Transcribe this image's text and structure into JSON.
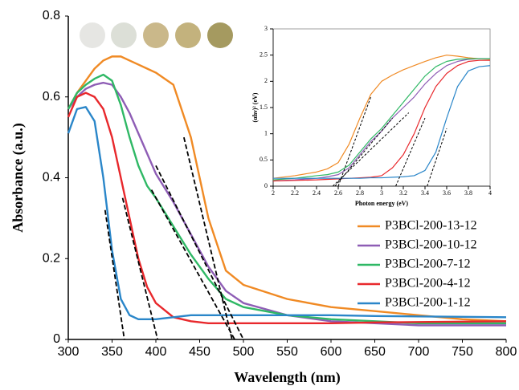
{
  "chart_data": [
    {
      "type": "line",
      "x_label": "Wavelength (nm)",
      "y_label": "Absorbance (a.u.)",
      "x": [
        300,
        310,
        320,
        330,
        340,
        350,
        360,
        370,
        380,
        390,
        400,
        420,
        440,
        460,
        480,
        500,
        550,
        600,
        650,
        700,
        750,
        800
      ],
      "series": [
        {
          "name": "P3BCl-200-13-12",
          "color": "#f08a24",
          "values": [
            0.57,
            0.61,
            0.64,
            0.67,
            0.69,
            0.7,
            0.7,
            0.69,
            0.68,
            0.67,
            0.66,
            0.63,
            0.5,
            0.3,
            0.17,
            0.135,
            0.1,
            0.08,
            0.07,
            0.06,
            0.05,
            0.045
          ]
        },
        {
          "name": "P3BCl-200-10-12",
          "color": "#8e5db5",
          "values": [
            0.57,
            0.6,
            0.62,
            0.63,
            0.635,
            0.63,
            0.6,
            0.56,
            0.51,
            0.46,
            0.41,
            0.34,
            0.26,
            0.18,
            0.12,
            0.09,
            0.06,
            0.045,
            0.04,
            0.035,
            0.035,
            0.035
          ]
        },
        {
          "name": "P3BCl-200-7-12",
          "color": "#2fb865",
          "values": [
            0.57,
            0.61,
            0.63,
            0.645,
            0.655,
            0.64,
            0.58,
            0.5,
            0.43,
            0.38,
            0.35,
            0.28,
            0.21,
            0.15,
            0.1,
            0.08,
            0.06,
            0.05,
            0.045,
            0.04,
            0.04,
            0.04
          ]
        },
        {
          "name": "P3BCl-200-4-12",
          "color": "#e8282c",
          "values": [
            0.55,
            0.6,
            0.61,
            0.6,
            0.57,
            0.5,
            0.4,
            0.3,
            0.2,
            0.13,
            0.09,
            0.055,
            0.045,
            0.04,
            0.04,
            0.04,
            0.04,
            0.04,
            0.042,
            0.043,
            0.044,
            0.045
          ]
        },
        {
          "name": "P3BCl-200-1-12",
          "color": "#2a86c9",
          "values": [
            0.51,
            0.57,
            0.575,
            0.54,
            0.4,
            0.22,
            0.1,
            0.06,
            0.05,
            0.05,
            0.05,
            0.055,
            0.06,
            0.06,
            0.06,
            0.06,
            0.06,
            0.06,
            0.058,
            0.057,
            0.056,
            0.055
          ]
        }
      ],
      "tangent_lines": [
        {
          "x": [
            342,
            364
          ],
          "y": [
            0.32,
            0
          ]
        },
        {
          "x": [
            362,
            402
          ],
          "y": [
            0.35,
            0
          ]
        },
        {
          "x": [
            395,
            490
          ],
          "y": [
            0.37,
            0
          ]
        },
        {
          "x": [
            400,
            500
          ],
          "y": [
            0.43,
            0
          ]
        },
        {
          "x": [
            432,
            487
          ],
          "y": [
            0.5,
            0
          ]
        }
      ],
      "xlim": [
        300,
        800
      ],
      "xticks": [
        300,
        350,
        400,
        450,
        500,
        550,
        600,
        650,
        700,
        750,
        800
      ],
      "ylim": [
        0,
        0.8
      ],
      "yticks": [
        0,
        0.2,
        0.4,
        0.6,
        0.8
      ],
      "legend": "lower right"
    },
    {
      "type": "line",
      "x_label": "Photon energy (eV)",
      "y_label": "(αhν)² (eV)",
      "x": [
        2,
        2.2,
        2.4,
        2.5,
        2.6,
        2.7,
        2.8,
        2.9,
        3,
        3.1,
        3.2,
        3.3,
        3.4,
        3.5,
        3.6,
        3.7,
        3.8,
        3.9,
        4
      ],
      "series": [
        {
          "color": "#f08a24",
          "values": [
            0.15,
            0.2,
            0.27,
            0.33,
            0.45,
            0.8,
            1.3,
            1.75,
            2.0,
            2.12,
            2.22,
            2.3,
            2.38,
            2.45,
            2.5,
            2.48,
            2.45,
            2.43,
            2.42
          ]
        },
        {
          "color": "#8e5db5",
          "values": [
            0.1,
            0.12,
            0.15,
            0.18,
            0.22,
            0.35,
            0.6,
            0.85,
            1.05,
            1.3,
            1.5,
            1.7,
            1.95,
            2.15,
            2.3,
            2.38,
            2.42,
            2.43,
            2.43
          ]
        },
        {
          "color": "#2fb865",
          "values": [
            0.12,
            0.15,
            0.2,
            0.22,
            0.27,
            0.4,
            0.65,
            0.9,
            1.1,
            1.35,
            1.6,
            1.85,
            2.1,
            2.28,
            2.38,
            2.42,
            2.43,
            2.43,
            2.43
          ]
        },
        {
          "color": "#e8282c",
          "values": [
            0.1,
            0.11,
            0.12,
            0.13,
            0.14,
            0.15,
            0.16,
            0.17,
            0.2,
            0.35,
            0.6,
            1.0,
            1.5,
            1.9,
            2.15,
            2.3,
            2.38,
            2.4,
            2.4
          ]
        },
        {
          "color": "#2a86c9",
          "values": [
            0.15,
            0.15,
            0.15,
            0.15,
            0.15,
            0.15,
            0.15,
            0.16,
            0.16,
            0.17,
            0.18,
            0.2,
            0.3,
            0.65,
            1.3,
            1.9,
            2.2,
            2.28,
            2.3
          ]
        }
      ],
      "tangent_lines": [
        {
          "x": [
            2.6,
            2.9
          ],
          "y": [
            0,
            1.7
          ]
        },
        {
          "x": [
            2.55,
            3.25
          ],
          "y": [
            0,
            1.4
          ]
        },
        {
          "x": [
            2.57,
            3.1
          ],
          "y": [
            0,
            1.3
          ]
        },
        {
          "x": [
            3.13,
            3.4
          ],
          "y": [
            0,
            1.3
          ]
        },
        {
          "x": [
            3.42,
            3.6
          ],
          "y": [
            0,
            1.1
          ]
        }
      ],
      "xlim": [
        2,
        4
      ],
      "xticks": [
        2,
        2.2,
        2.4,
        2.6,
        2.8,
        3,
        3.2,
        3.4,
        3.6,
        3.8,
        4
      ],
      "ylim": [
        0,
        3
      ],
      "yticks": [
        0,
        0.5,
        1,
        1.5,
        2,
        2.5,
        3
      ]
    }
  ]
}
